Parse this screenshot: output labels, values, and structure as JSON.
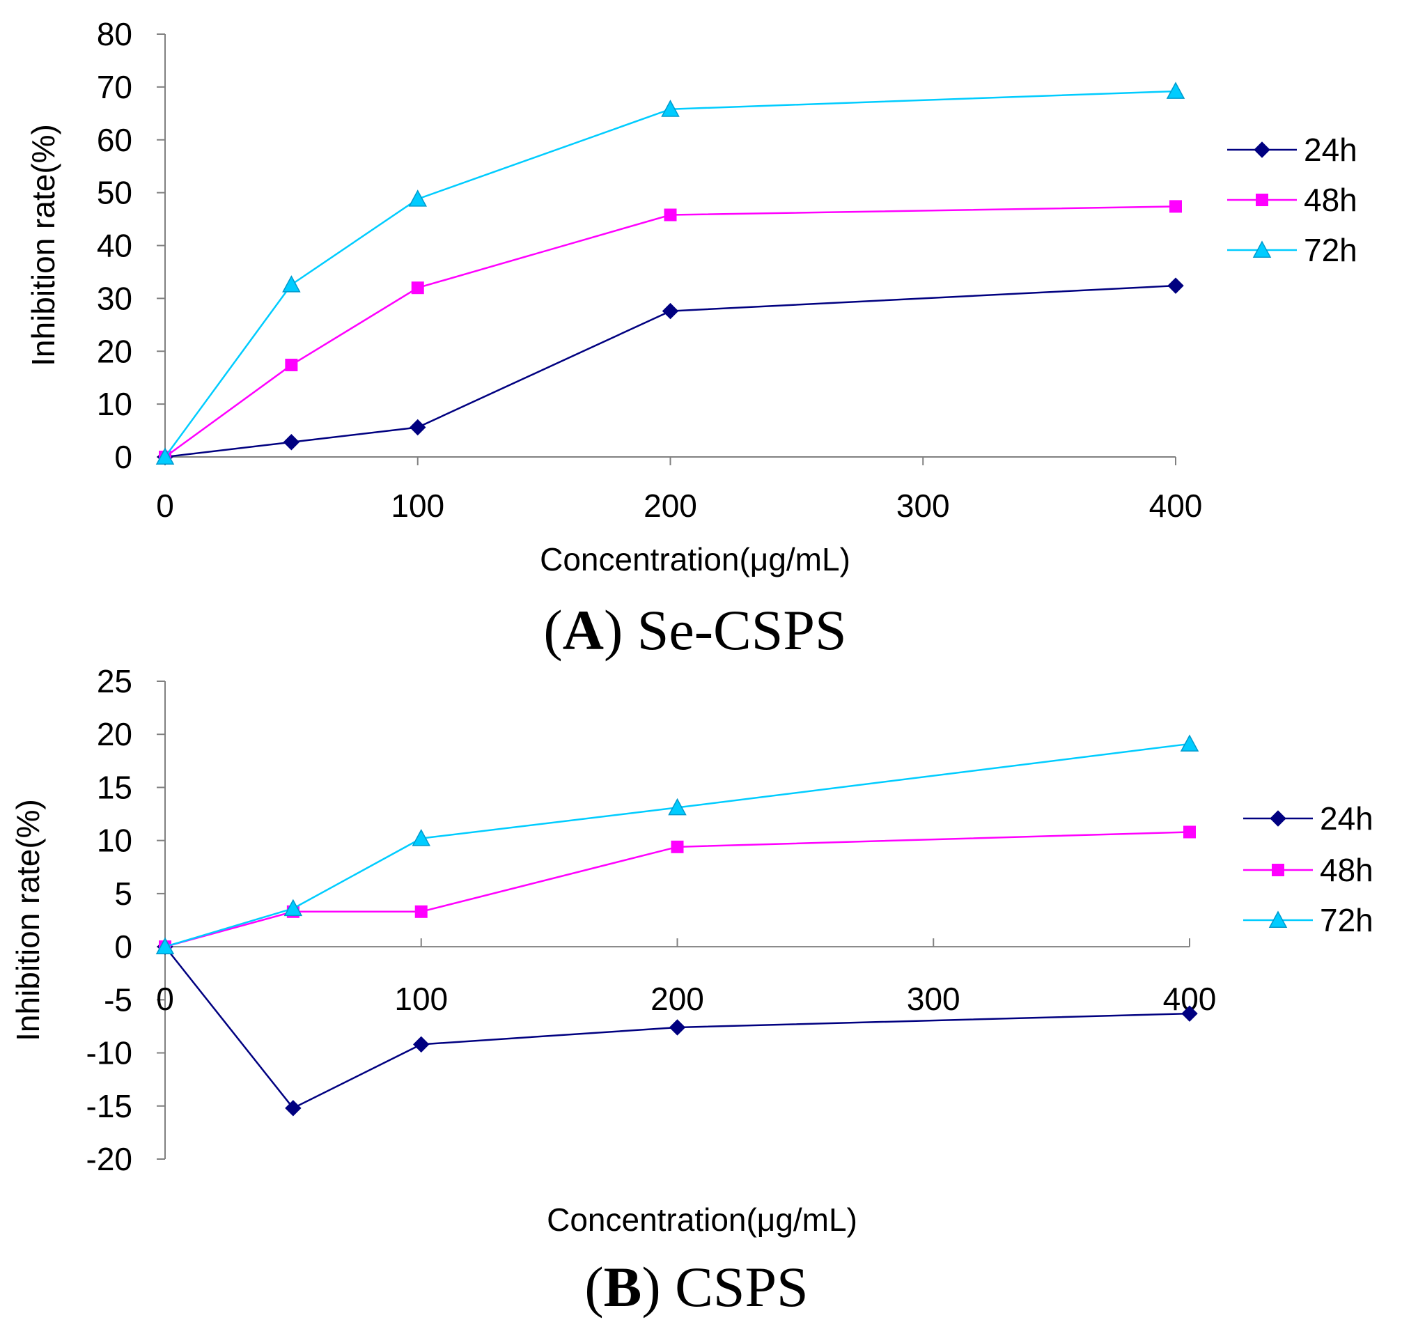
{
  "colors": {
    "h24": "#000080",
    "h48": "#FF00FF",
    "h72": "#00CCFF",
    "axis": "#808080",
    "text": "#000000"
  },
  "chart_data": [
    {
      "type": "line",
      "caption_letter": "A",
      "caption_name": "Se-CSPS",
      "xlabel": "Concentration(μg/mL)",
      "ylabel": "Inhibition rate(%)",
      "xlim": [
        0,
        400
      ],
      "ylim": [
        0,
        80
      ],
      "x_ticks": [
        "0",
        "100",
        "200",
        "300",
        "400"
      ],
      "y_ticks": [
        "0",
        "10",
        "20",
        "30",
        "40",
        "50",
        "60",
        "70",
        "80"
      ],
      "x": [
        0,
        50,
        100,
        200,
        400
      ],
      "series": [
        {
          "name": "24h",
          "marker": "diamond",
          "color": "#000080",
          "values": [
            0,
            2.8,
            5.6,
            27.6,
            32.4
          ]
        },
        {
          "name": "48h",
          "marker": "square",
          "color": "#FF00FF",
          "values": [
            0,
            17.4,
            32.0,
            45.8,
            47.4
          ]
        },
        {
          "name": "72h",
          "marker": "triangle",
          "color": "#00CCFF",
          "values": [
            0,
            32.6,
            48.8,
            65.8,
            69.2
          ]
        }
      ]
    },
    {
      "type": "line",
      "caption_letter": "B",
      "caption_name": "CSPS",
      "xlabel": "Concentration(μg/mL)",
      "ylabel": "Inhibition rate(%)",
      "xlim": [
        0,
        400
      ],
      "ylim": [
        -20,
        25
      ],
      "x_ticks": [
        "0",
        "100",
        "200",
        "300",
        "400"
      ],
      "y_ticks": [
        "-20",
        "-15",
        "-10",
        "-5",
        "0",
        "5",
        "10",
        "15",
        "20",
        "25"
      ],
      "x": [
        0,
        50,
        100,
        200,
        400
      ],
      "series": [
        {
          "name": "24h",
          "marker": "diamond",
          "color": "#000080",
          "values": [
            0,
            -15.2,
            -9.2,
            -7.6,
            -6.3
          ]
        },
        {
          "name": "48h",
          "marker": "square",
          "color": "#FF00FF",
          "values": [
            0,
            3.3,
            3.3,
            9.4,
            10.8
          ]
        },
        {
          "name": "72h",
          "marker": "triangle",
          "color": "#00CCFF",
          "values": [
            0,
            3.6,
            10.2,
            13.1,
            19.1
          ]
        }
      ]
    }
  ]
}
